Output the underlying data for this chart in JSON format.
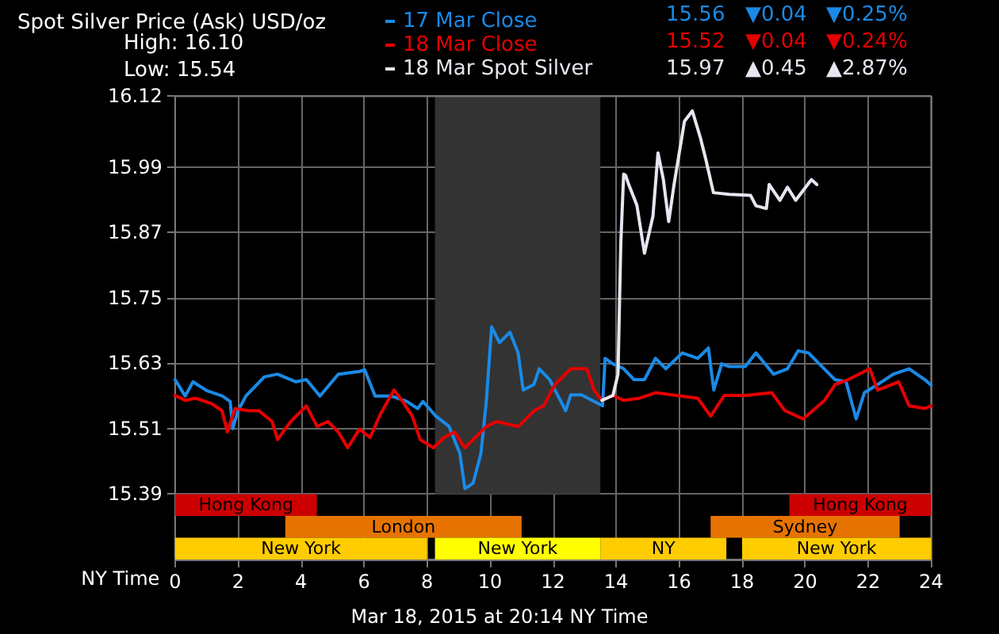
{
  "chart_data": {
    "type": "line",
    "title": "Spot Silver Price (Ask) USD/oz",
    "subtitle": "Mar 18, 2015 at 20:14 NY Time",
    "xlabel": "NY Time",
    "annotations": [
      "High: 16.10",
      "Low: 15.54",
      "15.56",
      "▼0.04",
      "▼0.25%",
      "15.52",
      "▼0.04",
      "▼0.24%",
      "15.97",
      "▲0.45",
      "▲2.87%"
    ],
    "xlim": [
      0,
      24
    ],
    "xticks": [
      0,
      2,
      4,
      6,
      8,
      10,
      12,
      14,
      16,
      18,
      20,
      22,
      24
    ],
    "ylim": [
      15.27,
      16.12
    ],
    "yticks": [
      15.39,
      15.51,
      15.63,
      15.75,
      15.87,
      15.99,
      16.12
    ],
    "grid": true,
    "legend": "top",
    "marker": "none",
    "line_style": "solid",
    "series": [
      {
        "name": "17 Mar Close",
        "color": "#1a8ae6",
        "x": [
          0,
          0.32,
          0.57,
          1,
          1.5,
          1.75,
          1.83,
          2,
          2.25,
          2.83,
          3.25,
          3.84,
          4.17,
          4.6,
          5.18,
          5.85,
          6.02,
          6.35,
          6.86,
          7.36,
          7.7,
          7.87,
          8.28,
          8.7,
          9.04,
          9.2,
          9.46,
          9.71,
          9.88,
          10.05,
          10.3,
          10.63,
          10.89,
          11.05,
          11.39,
          11.56,
          11.89,
          12.23,
          12.4,
          12.56,
          12.9,
          13.24,
          13.57,
          13.65,
          13.9,
          14.24,
          14.57,
          14.9,
          15.25,
          15.58,
          16.1,
          16.59,
          16.93,
          17.1,
          17.35,
          17.6,
          18.1,
          18.44,
          19,
          19.44,
          19.78,
          20.11,
          20.45,
          20.95,
          21.3,
          21.62,
          21.88,
          22.3,
          22.8,
          23.3,
          23.8,
          24
        ],
        "values": [
          15.6,
          15.57,
          15.596,
          15.58,
          15.57,
          15.56,
          15.51,
          15.543,
          15.57,
          15.605,
          15.61,
          15.596,
          15.6,
          15.57,
          15.61,
          15.615,
          15.618,
          15.57,
          15.57,
          15.56,
          15.547,
          15.56,
          15.533,
          15.514,
          15.465,
          15.4,
          15.41,
          15.465,
          15.56,
          15.697,
          15.668,
          15.687,
          15.649,
          15.581,
          15.591,
          15.62,
          15.6,
          15.562,
          15.543,
          15.572,
          15.572,
          15.562,
          15.552,
          15.639,
          15.629,
          15.62,
          15.6,
          15.6,
          15.639,
          15.62,
          15.649,
          15.639,
          15.658,
          15.581,
          15.629,
          15.624,
          15.624,
          15.649,
          15.61,
          15.62,
          15.653,
          15.649,
          15.629,
          15.6,
          15.596,
          15.528,
          15.576,
          15.591,
          15.61,
          15.62,
          15.6,
          15.59
        ]
      },
      {
        "name": "18 Mar Close",
        "color": "#e60000",
        "x": [
          0,
          0.32,
          0.65,
          1.16,
          1.49,
          1.66,
          1.9,
          2.33,
          2.66,
          3.08,
          3.25,
          3.67,
          4.17,
          4.51,
          4.85,
          5.18,
          5.48,
          5.85,
          6.19,
          6.53,
          6.95,
          7.2,
          7.53,
          7.78,
          8.2,
          8.54,
          8.87,
          9.2,
          9.88,
          10.2,
          10.9,
          11.4,
          11.7,
          12.06,
          12.56,
          13.07,
          13.3,
          13.55,
          13.9,
          14.24,
          14.74,
          15.25,
          15.92,
          16.59,
          17,
          17.43,
          18.1,
          18.94,
          19.36,
          19.94,
          20.62,
          20.95,
          21.37,
          22.05,
          22.3,
          22.97,
          23.3,
          23.8,
          24
        ],
        "values": [
          15.571,
          15.562,
          15.566,
          15.556,
          15.543,
          15.504,
          15.547,
          15.543,
          15.543,
          15.523,
          15.49,
          15.523,
          15.552,
          15.514,
          15.523,
          15.504,
          15.475,
          15.509,
          15.494,
          15.538,
          15.581,
          15.562,
          15.533,
          15.49,
          15.475,
          15.494,
          15.504,
          15.475,
          15.514,
          15.523,
          15.514,
          15.543,
          15.552,
          15.591,
          15.62,
          15.62,
          15.581,
          15.562,
          15.571,
          15.562,
          15.566,
          15.576,
          15.571,
          15.566,
          15.533,
          15.571,
          15.571,
          15.576,
          15.543,
          15.528,
          15.562,
          15.591,
          15.6,
          15.62,
          15.581,
          15.596,
          15.552,
          15.547,
          15.552
        ]
      },
      {
        "name": "18 Mar Spot Silver",
        "color": "#e6e6f0",
        "x": [
          13.55,
          13.9,
          14.06,
          14.15,
          14.24,
          14.3,
          14.4,
          14.66,
          14.9,
          15.17,
          15.33,
          15.5,
          15.67,
          15.84,
          16.17,
          16.42,
          16.67,
          16.84,
          17.09,
          17.6,
          18.27,
          18.44,
          18.77,
          18.86,
          19.2,
          19.44,
          19.7,
          19.95,
          20.2,
          20.37
        ],
        "values": [
          15.562,
          15.571,
          15.61,
          15.852,
          15.977,
          15.975,
          15.958,
          15.92,
          15.832,
          15.9,
          16.016,
          15.967,
          15.89,
          15.958,
          16.074,
          16.093,
          16.045,
          16.006,
          15.943,
          15.94,
          15.938,
          15.919,
          15.914,
          15.958,
          15.929,
          15.953,
          15.929,
          15.948,
          15.967,
          15.958
        ]
      }
    ],
    "bands": [
      {
        "axis": "x",
        "from": 8.25,
        "to": 13.5,
        "label": null,
        "color": "#333333"
      },
      {
        "axis": "x",
        "from": 0,
        "to": 4.5,
        "label": "Hong Kong",
        "color": "#cc0000"
      },
      {
        "axis": "x",
        "from": 19.5,
        "to": 24,
        "label": "Hong Kong",
        "color": "#cc0000"
      },
      {
        "axis": "x",
        "from": 3.5,
        "to": 11,
        "label": "London",
        "color": "#e67300"
      },
      {
        "axis": "x",
        "from": 17,
        "to": 23,
        "label": "Sydney",
        "color": "#e67300"
      },
      {
        "axis": "x",
        "from": 0,
        "to": 8,
        "label": "New York",
        "color": "#ffcc00"
      },
      {
        "axis": "x",
        "from": 8.25,
        "to": 13.5,
        "label": "New York",
        "color": "#ffff00"
      },
      {
        "axis": "x",
        "from": 13.5,
        "to": 17.5,
        "label": "NY",
        "color": "#ffcc00"
      },
      {
        "axis": "x",
        "from": 18,
        "to": 24,
        "label": "New York",
        "color": "#ffcc00"
      }
    ]
  }
}
